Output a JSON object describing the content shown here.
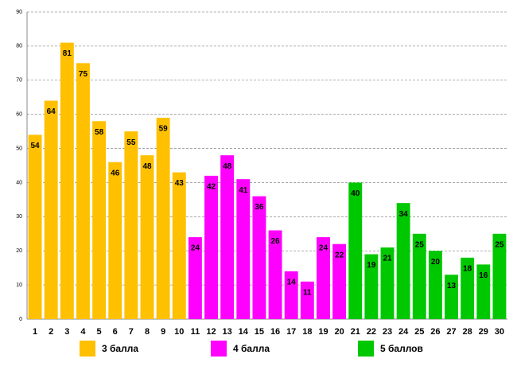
{
  "chart_data": {
    "type": "bar",
    "categories": [
      "1",
      "2",
      "3",
      "4",
      "5",
      "6",
      "7",
      "8",
      "9",
      "10",
      "11",
      "12",
      "13",
      "14",
      "15",
      "16",
      "17",
      "18",
      "19",
      "20",
      "21",
      "22",
      "23",
      "24",
      "25",
      "26",
      "27",
      "28",
      "29",
      "30"
    ],
    "series": [
      {
        "name": "3 балла",
        "color": "#FFC000",
        "values": [
          54,
          64,
          81,
          75,
          58,
          46,
          55,
          48,
          59,
          43,
          null,
          null,
          null,
          null,
          null,
          null,
          null,
          null,
          null,
          null,
          null,
          null,
          null,
          null,
          null,
          null,
          null,
          null,
          null,
          null
        ]
      },
      {
        "name": "4 балла",
        "color": "#FF00FF",
        "values": [
          null,
          null,
          null,
          null,
          null,
          null,
          null,
          null,
          null,
          null,
          24,
          42,
          48,
          41,
          36,
          26,
          14,
          11,
          24,
          22,
          null,
          null,
          null,
          null,
          null,
          null,
          null,
          null,
          null,
          null
        ]
      },
      {
        "name": "5 баллов",
        "color": "#00C800",
        "values": [
          null,
          null,
          null,
          null,
          null,
          null,
          null,
          null,
          null,
          null,
          null,
          null,
          null,
          null,
          null,
          null,
          null,
          null,
          null,
          null,
          40,
          19,
          21,
          34,
          25,
          20,
          13,
          18,
          16,
          25
        ]
      }
    ],
    "ylim": [
      0,
      90
    ],
    "yticks": [
      0,
      10,
      20,
      30,
      40,
      50,
      60,
      70,
      80,
      90
    ],
    "grid": true,
    "legend": "bottom"
  }
}
